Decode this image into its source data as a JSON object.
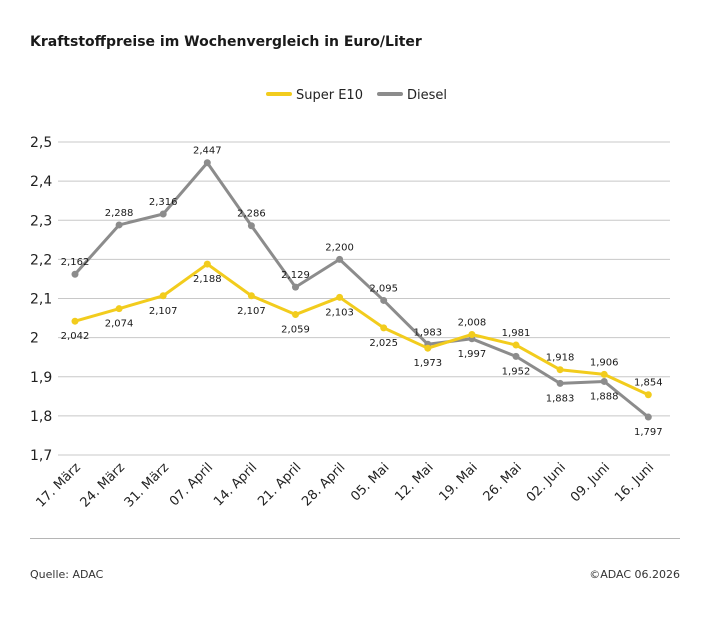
{
  "title": "Kraftstoffpreise im Wochenvergleich in Euro/Liter",
  "footer": {
    "source": "Quelle: ADAC",
    "copyright": "©ADAC 06.2026"
  },
  "colors": {
    "super": "#f2cc1d",
    "diesel": "#8c8c8c",
    "grid": "#c8c8c8"
  },
  "chart_data": {
    "type": "line",
    "title": "Kraftstoffpreise im Wochenvergleich in Euro/Liter",
    "xlabel": "",
    "ylabel": "",
    "ylim": [
      1.7,
      2.5
    ],
    "yticks": [
      "2,5",
      "2,4",
      "2,3",
      "2,2",
      "2,1",
      "2",
      "1,9",
      "1,8",
      "1,7"
    ],
    "ytick_values": [
      2.5,
      2.4,
      2.3,
      2.2,
      2.1,
      2.0,
      1.9,
      1.8,
      1.7
    ],
    "grid": true,
    "legend_position": "top-center",
    "categories": [
      "17. März",
      "24. März",
      "31. März",
      "07. April",
      "14. April",
      "21. April",
      "28. April",
      "05. Mai",
      "12. Mai",
      "19. Mai",
      "26. Mai",
      "02. Juni",
      "09. Juni",
      "16. Juni"
    ],
    "series": [
      {
        "name": "Super E10",
        "color": "#f2cc1d",
        "values": [
          2.042,
          2.074,
          2.107,
          2.188,
          2.107,
          2.059,
          2.103,
          2.025,
          1.973,
          2.008,
          1.981,
          1.918,
          1.906,
          1.854
        ],
        "labels": [
          "2,042",
          "2,074",
          "2,107",
          "2,188",
          "2,107",
          "2,059",
          "2,103",
          "2,025",
          "1,973",
          "2,008",
          "1,981",
          "1,918",
          "1,906",
          "1,854"
        ]
      },
      {
        "name": "Diesel",
        "color": "#8c8c8c",
        "values": [
          2.162,
          2.288,
          2.316,
          2.447,
          2.286,
          2.129,
          2.2,
          2.095,
          1.983,
          1.997,
          1.952,
          1.883,
          1.888,
          1.797
        ],
        "labels": [
          "2,162",
          "2,288",
          "2,316",
          "2,447",
          "2,286",
          "2,129",
          "2,200",
          "2,095",
          "1,983",
          "1,997",
          "1,952",
          "1,883",
          "1,888",
          "1,797"
        ]
      }
    ]
  }
}
